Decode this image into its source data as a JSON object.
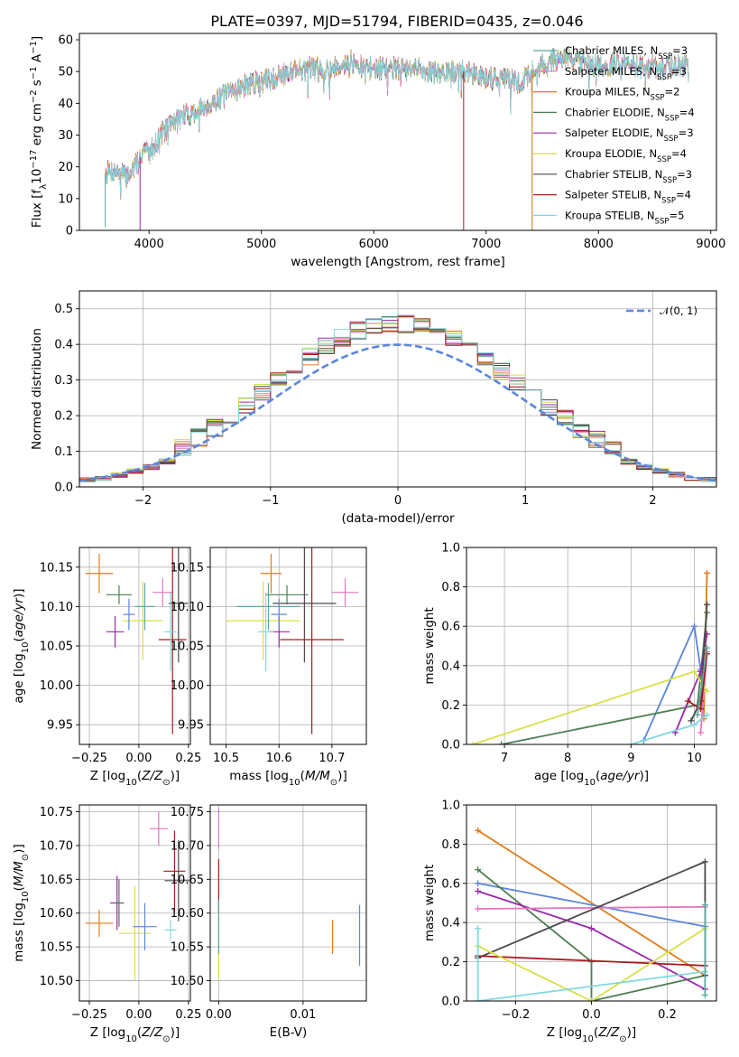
{
  "colors": [
    "#5ba8a0",
    "#e377c2",
    "#e07b1a",
    "#4d7f52",
    "#9a27a8",
    "#d8e046",
    "#4a4a4a",
    "#a21d1d",
    "#7fd8dc"
  ],
  "chart_data": [
    {
      "id": "spectrum",
      "type": "line",
      "title": "PLATE=0397, MJD=51794, FIBERID=0435, z=0.046",
      "xlabel": "wavelength [Angstrom, rest frame]",
      "ylabel": "Flux [fλ10⁻¹⁷ erg cm⁻² s⁻¹ A⁻¹]",
      "xlim": [
        3380,
        9050
      ],
      "ylim": [
        0,
        62
      ],
      "xticks": [
        4000,
        5000,
        6000,
        7000,
        8000,
        9000
      ],
      "yticks": [
        0,
        10,
        20,
        30,
        40,
        50,
        60
      ],
      "legend_loc": "upper-right",
      "legend": [
        "Chabrier MILES, NSSP=3",
        "Salpeter MILES, NSSP=3",
        "Kroupa MILES, NSSP=2",
        "Chabrier ELODIE, NSSP=4",
        "Salpeter ELODIE, NSSP=3",
        "Kroupa ELODIE, NSSP=4",
        "Chabrier STELIB, NSSP=3",
        "Salpeter STELIB, NSSP=4",
        "Kroupa STELIB, NSSP=5"
      ],
      "legend_names": [
        "Chabrier MILES, N",
        "Salpeter MILES, N",
        "Kroupa MILES, N",
        "Chabrier ELODIE, N",
        "Salpeter ELODIE, N",
        "Kroupa ELODIE, N",
        "Chabrier STELIB, N",
        "Salpeter STELIB, N",
        "Kroupa STELIB, N"
      ],
      "legend_nssp": [
        "3",
        "3",
        "2",
        "4",
        "3",
        "4",
        "3",
        "4",
        "5"
      ],
      "envelope": {
        "x": [
          3600,
          3700,
          3800,
          3900,
          3950,
          4000,
          4100,
          4200,
          4300,
          4400,
          4500,
          4600,
          4700,
          4800,
          4900,
          5000,
          5100,
          5200,
          5300,
          5400,
          5500,
          5600,
          5700,
          5800,
          5900,
          6000,
          6100,
          6200,
          6300,
          6400,
          6500,
          6600,
          6700,
          6800,
          6900,
          7000,
          7100,
          7200,
          7300,
          7400,
          7500,
          7600,
          7700,
          7800,
          7900,
          8000,
          8100,
          8200,
          8300,
          8400,
          8500,
          8600,
          8700,
          8800
        ],
        "y": [
          18,
          19,
          17,
          21,
          26,
          24,
          30,
          34,
          36,
          37,
          39,
          41,
          43,
          45,
          46,
          47,
          48,
          49,
          51,
          51,
          51,
          51,
          52,
          53,
          51,
          51,
          51,
          51,
          50,
          51,
          50,
          49,
          50,
          50,
          49,
          48,
          48,
          48,
          46,
          50,
          52,
          54,
          54,
          54,
          52,
          52,
          52,
          53,
          52,
          52,
          51,
          51,
          52,
          52
        ]
      },
      "drops": [
        [
          3920,
          4,
          0
        ],
        [
          6800,
          7,
          0
        ],
        [
          7410,
          8,
          0
        ],
        [
          7410,
          2,
          0
        ],
        [
          3610,
          0,
          1
        ]
      ]
    },
    {
      "id": "residuals",
      "type": "histogram",
      "xlabel": "(data-model)/error",
      "ylabel": "Normed distribution",
      "xlim": [
        -2.5,
        2.5
      ],
      "ylim": [
        0,
        0.55
      ],
      "xticks": [
        -2,
        -1,
        0,
        1,
        2
      ],
      "yticks": [
        0.0,
        0.1,
        0.2,
        0.3,
        0.4,
        0.5
      ],
      "legend_loc": "upper-right",
      "legend": [
        "𝒩(0, 1)"
      ],
      "normal_color": "#5b86dc"
    },
    {
      "id": "age-vs-Z",
      "type": "scatter",
      "xlabel": "Z [log₁₀(Z/Z⊙)]",
      "ylabel": "age  [log₁₀(age/yr)]",
      "xlim": [
        -0.3,
        0.26
      ],
      "ylim": [
        9.925,
        10.175
      ],
      "xticks": [
        -0.25,
        0.0,
        0.25
      ],
      "yticks": [
        9.95,
        10.0,
        10.05,
        10.1,
        10.15
      ],
      "points": [
        {
          "x": -0.2,
          "y": 10.142,
          "xerr": 0.07,
          "yerr": 0.025,
          "c": 2
        },
        {
          "x": -0.1,
          "y": 10.115,
          "xerr": 0.065,
          "yerr": 0.012,
          "c": 3
        },
        {
          "x": -0.12,
          "y": 10.068,
          "xerr": 0.045,
          "yerr": 0.02,
          "c": 4
        },
        {
          "x": 0.12,
          "y": 10.118,
          "xerr": 0.05,
          "yerr": 0.018,
          "c": 1
        },
        {
          "x": 0.02,
          "y": 10.082,
          "xerr": 0.1,
          "yerr": 0.05,
          "c": 5
        },
        {
          "x": 0.03,
          "y": 10.1,
          "xerr": 0.05,
          "yerr": 0.03,
          "c": 0
        },
        {
          "x": 0.2,
          "y": 10.104,
          "xerr": 0.05,
          "yerr": 0.075,
          "c": 6
        },
        {
          "x": 0.17,
          "y": 10.058,
          "xerr": 0.07,
          "yerr": 0.12,
          "c": 7
        },
        {
          "x": 0.16,
          "y": 10.068,
          "xerr": 0.03,
          "yerr": 0.05,
          "c": 8
        },
        {
          "x": -0.05,
          "y": 10.09,
          "xerr": 0.03,
          "yerr": 0.02,
          "c": 9
        }
      ]
    },
    {
      "id": "age-vs-mass",
      "type": "scatter",
      "xlabel": "mass [log₁₀(M/M⊙)]",
      "ylabel": "",
      "xlim": [
        10.47,
        10.765
      ],
      "ylim": [
        9.925,
        10.175
      ],
      "xticks": [
        10.5,
        10.6,
        10.7
      ],
      "yticks": [
        9.95,
        10.0,
        10.05,
        10.1,
        10.15
      ],
      "points": [
        {
          "x": 10.585,
          "y": 10.142,
          "xerr": 0.02,
          "yerr": 0.025,
          "c": 2
        },
        {
          "x": 10.615,
          "y": 10.115,
          "xerr": 0.04,
          "yerr": 0.012,
          "c": 3
        },
        {
          "x": 10.6,
          "y": 10.068,
          "xerr": 0.02,
          "yerr": 0.02,
          "c": 4
        },
        {
          "x": 10.725,
          "y": 10.118,
          "xerr": 0.025,
          "yerr": 0.018,
          "c": 1
        },
        {
          "x": 10.57,
          "y": 10.082,
          "xerr": 0.07,
          "yerr": 0.05,
          "c": 5
        },
        {
          "x": 10.58,
          "y": 10.1,
          "xerr": 0.06,
          "yerr": 0.03,
          "c": 0
        },
        {
          "x": 10.648,
          "y": 10.104,
          "xerr": 0.06,
          "yerr": 0.075,
          "c": 6
        },
        {
          "x": 10.662,
          "y": 10.058,
          "xerr": 0.06,
          "yerr": 0.12,
          "c": 7
        },
        {
          "x": 10.575,
          "y": 10.068,
          "xerr": 0.015,
          "yerr": 0.05,
          "c": 8
        },
        {
          "x": 10.6,
          "y": 10.09,
          "xerr": 0.015,
          "yerr": 0.02,
          "c": 9
        }
      ]
    },
    {
      "id": "weight-vs-age",
      "type": "line",
      "xlabel": "age  [log₁₀(age/yr)]",
      "ylabel": "mass weight",
      "xlim": [
        6.4,
        10.35
      ],
      "ylim": [
        0,
        1
      ],
      "xticks": [
        7,
        8,
        9,
        10
      ],
      "yticks": [
        0.0,
        0.2,
        0.4,
        0.6,
        0.8,
        1.0
      ],
      "series": [
        {
          "c": 2,
          "x": [
            10.15,
            10.2
          ],
          "y": [
            0.13,
            0.87
          ]
        },
        {
          "c": 9,
          "x": [
            9.2,
            10.0,
            10.1
          ],
          "y": [
            0.02,
            0.6,
            0.38
          ]
        },
        {
          "c": 3,
          "x": [
            6.95,
            10.05,
            10.2
          ],
          "y": [
            0.0,
            0.2,
            0.67
          ]
        },
        {
          "c": 4,
          "x": [
            9.7,
            10.1,
            10.2
          ],
          "y": [
            0.06,
            0.37,
            0.56
          ]
        },
        {
          "c": 1,
          "x": [
            10.1,
            10.2
          ],
          "y": [
            0.06,
            0.47
          ]
        },
        {
          "c": 5,
          "x": [
            6.5,
            10.0,
            10.2
          ],
          "y": [
            0.0,
            0.37,
            0.27
          ]
        },
        {
          "c": 6,
          "x": [
            9.95,
            10.1,
            10.2
          ],
          "y": [
            0.12,
            0.22,
            0.71
          ]
        },
        {
          "c": 7,
          "x": [
            9.9,
            10.1,
            10.2
          ],
          "y": [
            0.22,
            0.18,
            0.46
          ]
        },
        {
          "c": 8,
          "x": [
            9.0,
            10.0,
            10.2
          ],
          "y": [
            0.0,
            0.1,
            0.15
          ]
        },
        {
          "c": 0,
          "x": [
            10.05,
            10.2
          ],
          "y": [
            0.15,
            0.49
          ]
        }
      ]
    },
    {
      "id": "mass-vs-Z",
      "type": "scatter",
      "xlabel": "Z [log₁₀(Z/Z⊙)]",
      "ylabel": "mass [log₁₀(M/M⊙)]",
      "xlim": [
        -0.3,
        0.26
      ],
      "ylim": [
        10.47,
        10.76
      ],
      "xticks": [
        -0.25,
        0.0,
        0.25
      ],
      "yticks": [
        10.5,
        10.55,
        10.6,
        10.65,
        10.7,
        10.75
      ],
      "points": [
        {
          "x": -0.2,
          "y": 10.585,
          "xerr": 0.07,
          "yerr": 0.02,
          "c": 2
        },
        {
          "x": -0.11,
          "y": 10.615,
          "xerr": 0.035,
          "yerr": 0.04,
          "c": 4
        },
        {
          "x": 0.1,
          "y": 10.725,
          "xerr": 0.045,
          "yerr": 0.025,
          "c": 1
        },
        {
          "x": -0.02,
          "y": 10.57,
          "xerr": 0.08,
          "yerr": 0.07,
          "c": 5
        },
        {
          "x": 0.03,
          "y": 10.58,
          "xerr": 0.06,
          "yerr": 0.035,
          "c": 9
        },
        {
          "x": 0.18,
          "y": 10.662,
          "xerr": 0.055,
          "yerr": 0.06,
          "c": 7
        },
        {
          "x": 0.2,
          "y": 10.648,
          "xerr": 0.07,
          "yerr": 0.06,
          "c": 6
        },
        {
          "x": 0.16,
          "y": 10.575,
          "xerr": 0.03,
          "yerr": 0.015,
          "c": 8
        },
        {
          "x": -0.1,
          "y": 10.615,
          "xerr": 0.02,
          "yerr": 0.035,
          "c": 3
        }
      ]
    },
    {
      "id": "mass-vs-EBV",
      "type": "scatter",
      "xlabel": "E(B-V)",
      "ylabel": "",
      "xlim": [
        -0.001,
        0.0175
      ],
      "ylim": [
        10.47,
        10.76
      ],
      "xticks": [
        0.0,
        0.01
      ],
      "yticks": [
        10.5,
        10.55,
        10.6,
        10.65,
        10.7,
        10.75
      ],
      "points": [
        {
          "x": 0.0,
          "y": 10.725,
          "xerr": 0,
          "yerr": 0.03,
          "c": 1
        },
        {
          "x": 0.0,
          "y": 10.64,
          "xerr": 0,
          "yerr": 0.04,
          "c": 7
        },
        {
          "x": 0.0,
          "y": 10.55,
          "xerr": 0,
          "yerr": 0.05,
          "c": 5
        },
        {
          "x": 0.0,
          "y": 10.58,
          "xerr": 0,
          "yerr": 0.04,
          "c": 0
        },
        {
          "x": 0.0135,
          "y": 10.565,
          "xerr": 0,
          "yerr": 0.025,
          "c": 2
        },
        {
          "x": 0.0167,
          "y": 10.567,
          "xerr": 0,
          "yerr": 0.045,
          "c": 9
        }
      ]
    },
    {
      "id": "weight-vs-Z",
      "type": "line",
      "xlabel": "Z [log₁₀(Z/Z⊙)]",
      "ylabel": "mass weight",
      "xlim": [
        -0.33,
        0.33
      ],
      "ylim": [
        0,
        1
      ],
      "xticks": [
        -0.2,
        0.0,
        0.2
      ],
      "yticks": [
        0.0,
        0.2,
        0.4,
        0.6,
        0.8,
        1.0
      ],
      "series": [
        {
          "c": 2,
          "x": [
            -0.3,
            0.3
          ],
          "y": [
            0.87,
            0.13
          ]
        },
        {
          "c": 9,
          "x": [
            -0.3,
            0.3
          ],
          "y": [
            0.6,
            0.38
          ]
        },
        {
          "c": 3,
          "x": [
            -0.3,
            0.0,
            0.0,
            0.3
          ],
          "y": [
            0.67,
            0.2,
            0.0,
            0.13
          ]
        },
        {
          "c": 4,
          "x": [
            -0.3,
            0.0,
            0.3
          ],
          "y": [
            0.56,
            0.37,
            0.06
          ]
        },
        {
          "c": 1,
          "x": [
            -0.3,
            0.3
          ],
          "y": [
            0.47,
            0.48
          ]
        },
        {
          "c": 6,
          "x": [
            -0.3,
            0.3,
            0.3
          ],
          "y": [
            0.22,
            0.71,
            0.13
          ]
        },
        {
          "c": 7,
          "x": [
            -0.3,
            0.3
          ],
          "y": [
            0.23,
            0.18
          ]
        },
        {
          "c": 5,
          "x": [
            -0.3,
            0.0,
            0.3
          ],
          "y": [
            0.28,
            0.0,
            0.37
          ]
        },
        {
          "c": 8,
          "x": [
            -0.3,
            -0.3,
            0.3
          ],
          "y": [
            0.37,
            0.0,
            0.15
          ]
        },
        {
          "c": 0,
          "x": [
            0.3,
            0.3
          ],
          "y": [
            0.03,
            0.49
          ]
        }
      ]
    }
  ]
}
